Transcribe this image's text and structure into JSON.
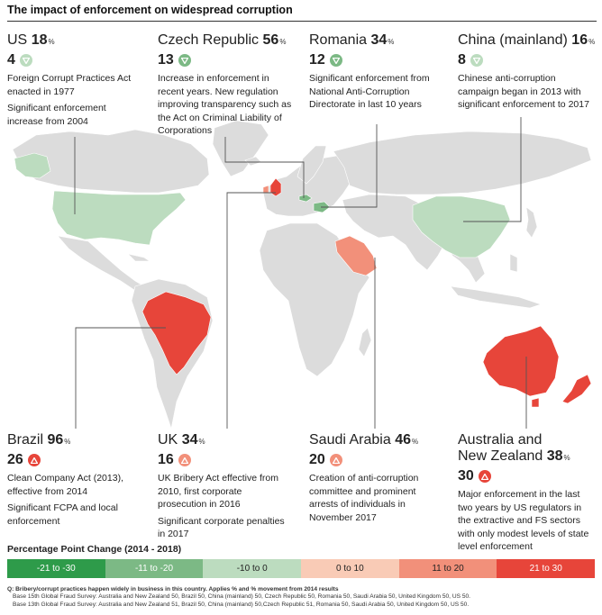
{
  "title": "The impact of enforcement on widespread corruption",
  "colors": {
    "ocean": "#ffffff",
    "land": "#dcdcdc",
    "strong_decrease": "#2e9b4a",
    "moderate_decrease": "#7cb985",
    "slight_decrease": "#bcdcbf",
    "slight_increase": "#f9cbb6",
    "moderate_increase": "#f2907a",
    "strong_increase": "#e7453a",
    "connector": "#555555"
  },
  "countries": [
    {
      "id": "us",
      "name": "US",
      "value": "18",
      "unit": "%",
      "change": "4",
      "direction": "down",
      "badge_color": "#bcdcbf",
      "notes": [
        "Foreign Corrupt Practices Act enacted in 1977",
        "Significant enforcement increase from 2004"
      ]
    },
    {
      "id": "czech",
      "name": "Czech Republic",
      "value": "56",
      "unit": "%",
      "change": "13",
      "direction": "down",
      "badge_color": "#7cb985",
      "notes": [
        "Increase in enforcement in recent years. New regulation improving transparency such as the Act on Criminal Liability of Corporations"
      ]
    },
    {
      "id": "romania",
      "name": "Romania",
      "value": "34",
      "unit": "%",
      "change": "12",
      "direction": "down",
      "badge_color": "#7cb985",
      "notes": [
        "Significant enforcement from National Anti-Corruption Directorate in last 10 years"
      ]
    },
    {
      "id": "china",
      "name": "China (mainland)",
      "value": "16",
      "unit": "%",
      "change": "8",
      "direction": "down",
      "badge_color": "#bcdcbf",
      "notes": [
        "Chinese anti-corruption campaign began in 2013 with significant enforcement to 2017"
      ]
    },
    {
      "id": "brazil",
      "name": "Brazil",
      "value": "96",
      "unit": "%",
      "change": "26",
      "direction": "up",
      "badge_color": "#e7453a",
      "notes": [
        "Clean Company Act (2013), effective from 2014",
        "Significant FCPA and local enforcement"
      ]
    },
    {
      "id": "uk",
      "name": "UK",
      "value": "34",
      "unit": "%",
      "change": "16",
      "direction": "up",
      "badge_color": "#f2907a",
      "notes": [
        "UK Bribery Act effective from 2010, first corporate prosecution in 2016",
        "Significant corporate penalties in 2017"
      ]
    },
    {
      "id": "saudi",
      "name": "Saudi Arabia",
      "value": "46",
      "unit": "%",
      "change": "20",
      "direction": "up",
      "badge_color": "#f2907a",
      "notes": [
        "Creation of anti-corruption committee and prominent arrests of individuals in November 2017"
      ]
    },
    {
      "id": "australia",
      "name_line1": "Australia and",
      "name_line2": "New Zealand",
      "value": "38",
      "unit": "%",
      "change": "30",
      "direction": "up",
      "badge_color": "#e7453a",
      "notes": [
        "Major enforcement in the last two years by US regulators in the extractive and FS sectors with only modest levels of state level enforcement"
      ]
    }
  ],
  "legend": {
    "title": "Percentage Point Change (2014 - 2018)",
    "items": [
      {
        "label": "-21 to -30",
        "color": "#2e9b4a",
        "text_color": "#ffffff"
      },
      {
        "label": "-11 to -20",
        "color": "#7cb985",
        "text_color": "#ffffff"
      },
      {
        "label": "-10 to 0",
        "color": "#bcdcbf",
        "text_color": "#222222"
      },
      {
        "label": "0 to 10",
        "color": "#f9cbb6",
        "text_color": "#222222"
      },
      {
        "label": "11 to 20",
        "color": "#f2907a",
        "text_color": "#222222"
      },
      {
        "label": "21 to 30",
        "color": "#e7453a",
        "text_color": "#ffffff"
      }
    ]
  },
  "footnotes": {
    "question": "Q: Bribery/corrupt practices happen widely in business in this country. Applies % and % movement from 2014 results",
    "base_2018": "Base 15th Global Fraud Survey: Australia and New Zealand 50, Brazil 50, China (mainland) 50, Czech Republic 50, Romania 50, Saudi Arabia 50, United Kingdom 50, US 50.",
    "base_2014": "Base 13th Global Fraud Survey: Australia and New Zealand 51, Brazil 50, China (mainland) 50,Czech Republic 51, Romania 50, Saudi Arabia 50, United Kingdom 50, US 50."
  }
}
